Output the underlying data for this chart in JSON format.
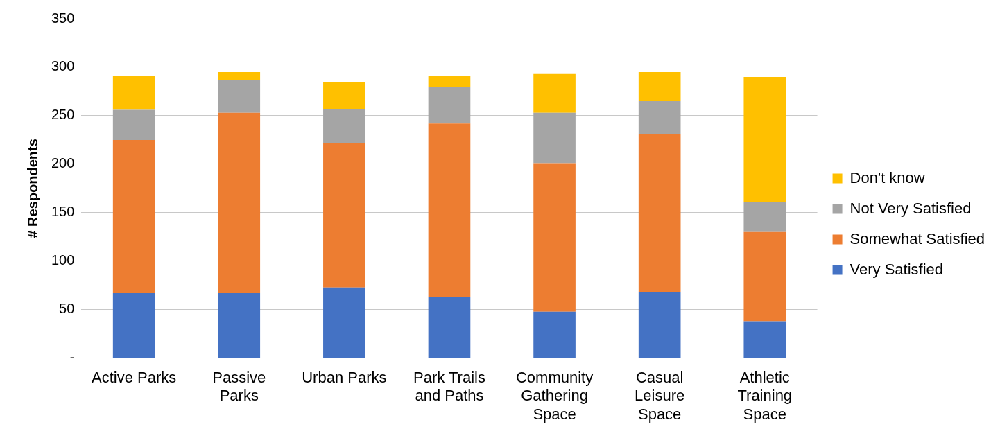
{
  "chart_data": {
    "type": "bar",
    "stacked": true,
    "ylabel": "# Respondents",
    "categories": [
      "Active Parks",
      "Passive Parks",
      "Urban Parks",
      "Park Trails and Paths",
      "Community Gathering Space",
      "Casual Leisure Space",
      "Athletic Training Space"
    ],
    "series": [
      {
        "name": "Very Satisfied",
        "color": "#4472c4",
        "values": [
          67,
          67,
          73,
          63,
          48,
          68,
          38
        ]
      },
      {
        "name": "Somewhat Satisfied",
        "color": "#ed7d31",
        "values": [
          158,
          186,
          149,
          179,
          153,
          163,
          92
        ]
      },
      {
        "name": "Not Very Satisfied",
        "color": "#a5a5a5",
        "values": [
          31,
          34,
          35,
          38,
          52,
          34,
          31
        ]
      },
      {
        "name": "Don't know",
        "color": "#ffc000",
        "values": [
          35,
          8,
          28,
          11,
          40,
          30,
          129
        ]
      }
    ],
    "ylim": [
      0,
      350
    ],
    "yticks": [
      {
        "value": 0,
        "label": "-"
      },
      50,
      100,
      150,
      200,
      250,
      300,
      350
    ],
    "grid": "y",
    "legend": "right"
  }
}
